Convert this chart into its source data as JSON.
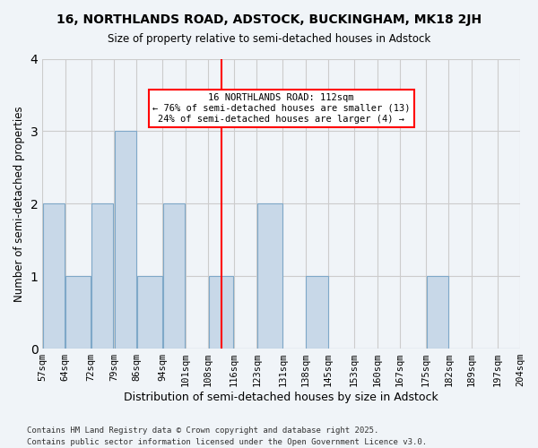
{
  "title1": "16, NORTHLANDS ROAD, ADSTOCK, BUCKINGHAM, MK18 2JH",
  "title2": "Size of property relative to semi-detached houses in Adstock",
  "xlabel": "Distribution of semi-detached houses by size in Adstock",
  "ylabel": "Number of semi-detached properties",
  "bins": [
    57,
    64,
    72,
    79,
    86,
    94,
    101,
    108,
    116,
    123,
    131,
    138,
    145,
    153,
    160,
    167,
    175,
    182,
    189,
    197,
    204
  ],
  "bin_labels": [
    "57sqm",
    "64sqm",
    "72sqm",
    "79sqm",
    "86sqm",
    "94sqm",
    "101sqm",
    "108sqm",
    "116sqm",
    "123sqm",
    "131sqm",
    "138sqm",
    "145sqm",
    "153sqm",
    "160sqm",
    "167sqm",
    "175sqm",
    "182sqm",
    "189sqm",
    "197sqm",
    "204sqm"
  ],
  "counts": [
    2,
    1,
    2,
    3,
    1,
    2,
    0,
    1,
    0,
    2,
    0,
    1,
    0,
    0,
    0,
    0,
    1,
    0,
    0,
    0
  ],
  "bar_color": "#c8d8e8",
  "bar_edge_color": "#7fa8c8",
  "reference_line_x": 112,
  "annotation_title": "16 NORTHLANDS ROAD: 112sqm",
  "annotation_line1": "← 76% of semi-detached houses are smaller (13)",
  "annotation_line2": "24% of semi-detached houses are larger (4) →",
  "annotation_box_color": "white",
  "annotation_box_edge_color": "red",
  "vline_color": "red",
  "ylim": [
    0,
    4
  ],
  "yticks": [
    0,
    1,
    2,
    3,
    4
  ],
  "grid_color": "#cccccc",
  "bg_color": "#f0f4f8",
  "footnote1": "Contains HM Land Registry data © Crown copyright and database right 2025.",
  "footnote2": "Contains public sector information licensed under the Open Government Licence v3.0."
}
